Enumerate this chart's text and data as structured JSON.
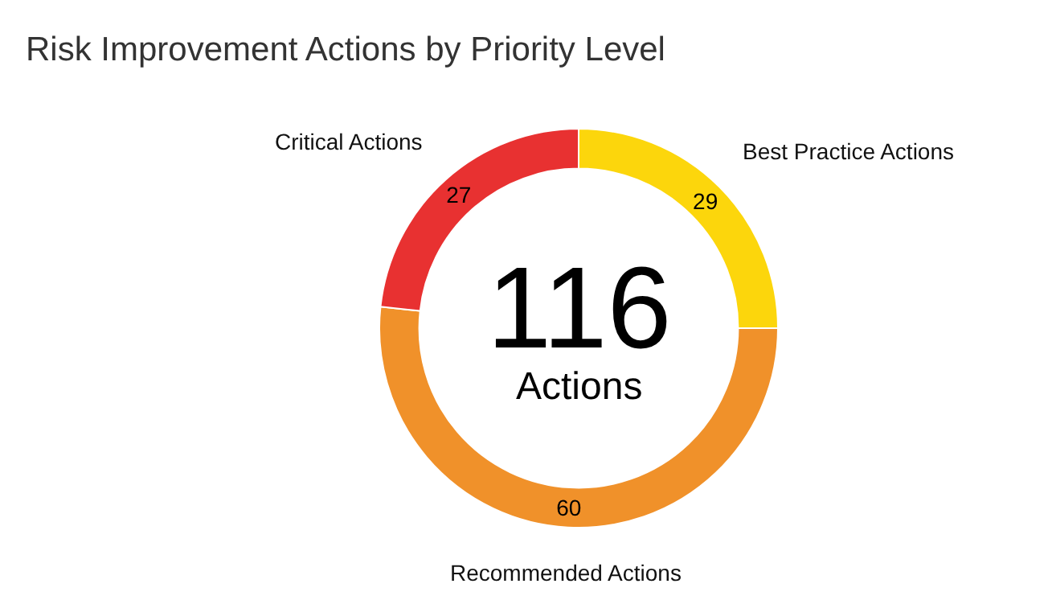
{
  "chart_data": {
    "type": "donut",
    "title": "Risk Improvement Actions by Priority Level",
    "categories": [
      "Best Practice Actions",
      "Recommended Actions",
      "Critical Actions"
    ],
    "values": [
      29,
      60,
      27
    ],
    "colors": [
      "#fcd60c",
      "#f0912a",
      "#e83131"
    ],
    "data_labels": true,
    "legend": false,
    "annotations": [
      "116",
      "Actions"
    ]
  }
}
